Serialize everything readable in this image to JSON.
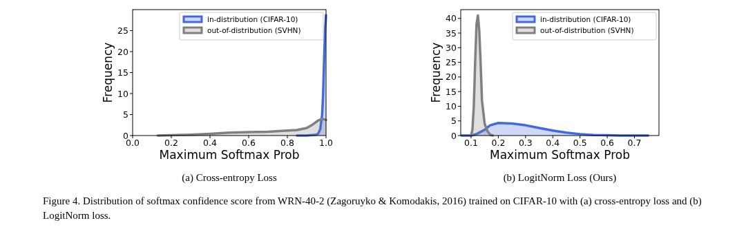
{
  "chart_data": [
    {
      "type": "area",
      "title": "(a) Cross-entropy Loss",
      "xlabel": "Maximum Softmax Prob",
      "ylabel": "Frequency",
      "xlim": [
        0,
        1
      ],
      "ylim": [
        0,
        30
      ],
      "xticks": [
        {
          "value": 0,
          "label": "0.0"
        },
        {
          "value": 0.2,
          "label": "0.2"
        },
        {
          "value": 0.4,
          "label": "0.4"
        },
        {
          "value": 0.6,
          "label": "0.6"
        },
        {
          "value": 0.8,
          "label": "0.8"
        },
        {
          "value": 1,
          "label": "1.0"
        }
      ],
      "yticks": [
        0,
        5,
        10,
        15,
        20,
        25
      ],
      "legend": "top right",
      "series": [
        {
          "name": "in-distribution (CIFAR-10)",
          "color": "#4169e1",
          "x": [
            0.85,
            0.9,
            0.95,
            0.96,
            0.97,
            0.98,
            0.985,
            0.99,
            0.995,
            1.0
          ],
          "values": [
            0,
            0,
            0.2,
            0.5,
            1.5,
            5,
            10,
            18,
            25,
            28.7
          ]
        },
        {
          "name": "out-of-distribution (SVHN)",
          "color": "#808080",
          "x": [
            0.13,
            0.2,
            0.3,
            0.4,
            0.5,
            0.6,
            0.7,
            0.8,
            0.85,
            0.9,
            0.93,
            0.96,
            0.98,
            1.0
          ],
          "values": [
            0,
            0.1,
            0.2,
            0.4,
            0.7,
            0.8,
            0.9,
            1.2,
            1.3,
            1.8,
            2.6,
            3.6,
            4.0,
            3.7
          ]
        }
      ],
      "annotations": [
        "Figure 4. Distribution of softmax confidence score from WRN-40-2 (Zagoruyko & Komodakis, 2016) trained on CIFAR-10 with (a) cross-entropy loss and (b) LogitNorm loss."
      ]
    },
    {
      "type": "area",
      "title": "(b) LogitNorm Loss (Ours)",
      "xlabel": "Maximum Softmax Prob",
      "ylabel": "Frequency",
      "xlim": [
        0.062,
        0.79
      ],
      "ylim": [
        0,
        43
      ],
      "xticks": [
        0.1,
        0.2,
        0.3,
        0.4,
        0.5,
        0.6,
        0.7
      ],
      "yticks": [
        0,
        5,
        10,
        15,
        20,
        25,
        30,
        35,
        40
      ],
      "legend": "top right",
      "series": [
        {
          "name": "in-distribution (CIFAR-10)",
          "color": "#4169e1",
          "x": [
            0.065,
            0.1,
            0.12,
            0.15,
            0.17,
            0.2,
            0.25,
            0.3,
            0.35,
            0.4,
            0.45,
            0.5,
            0.55,
            0.6,
            0.65,
            0.75
          ],
          "values": [
            0,
            0,
            0.5,
            2,
            3.5,
            4.3,
            4.1,
            3.5,
            2.6,
            1.7,
            1.0,
            0.5,
            0.2,
            0.1,
            0,
            0
          ]
        },
        {
          "name": "out-of-distribution (SVHN)",
          "color": "#808080",
          "x": [
            0.1,
            0.105,
            0.11,
            0.115,
            0.12,
            0.125,
            0.13,
            0.135,
            0.14,
            0.15,
            0.16,
            0.17,
            0.18
          ],
          "values": [
            0,
            2,
            10,
            25,
            38,
            41,
            36,
            25,
            12,
            4,
            1.5,
            0.3,
            0
          ]
        }
      ]
    }
  ]
}
